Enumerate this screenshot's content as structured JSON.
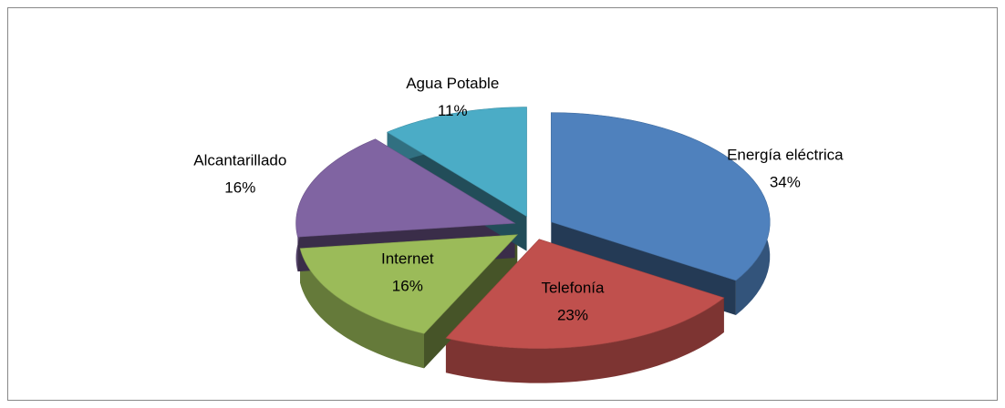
{
  "chart_data": {
    "type": "pie3d",
    "categories": [
      "Energía eléctrica",
      "Telefonía",
      "Internet",
      "Alcantarillado",
      "Agua Potable"
    ],
    "values": [
      34,
      23,
      16,
      16,
      11
    ],
    "value_labels": [
      "34%",
      "23%",
      "16%",
      "16%",
      "11%"
    ],
    "colors": [
      "#4f81bd",
      "#c0504d",
      "#9bbb59",
      "#8064a2",
      "#4bacc6"
    ]
  }
}
